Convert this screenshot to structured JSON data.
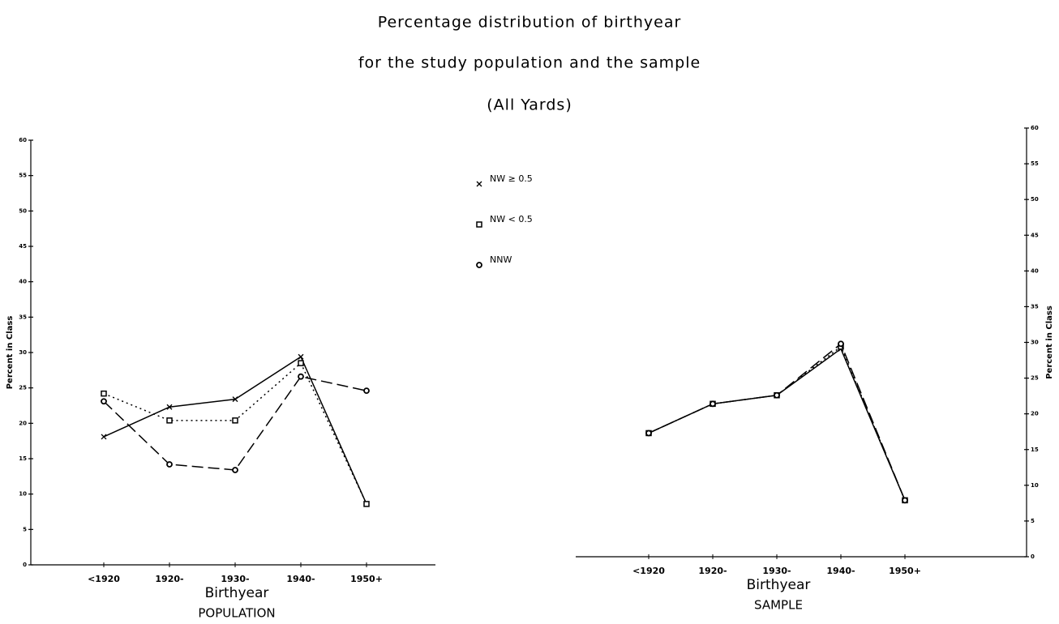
{
  "title": [
    "Percentage distribution of birthyear",
    "for the study population and the sample",
    "(All Yards)"
  ],
  "chart_data": [
    {
      "type": "line",
      "caption": "POPULATION",
      "xlabel": "Birthyear",
      "ylabel": "Percent in Class",
      "categories": [
        "<1920",
        "1920-",
        "1930-",
        "1940-",
        "1950+"
      ],
      "ylim": [
        0,
        60
      ],
      "yticks": [
        0,
        5,
        10,
        15,
        20,
        25,
        30,
        35,
        40,
        45,
        50,
        55,
        60
      ],
      "y_axis_side": "left",
      "series": [
        {
          "name": "NW ≥ 0.5",
          "color": "#000",
          "dash": "solid",
          "marker": "x",
          "values": [
            18.1,
            22.3,
            23.4,
            29.4,
            8.6
          ]
        },
        {
          "name": "NW < 0.5",
          "color": "#000",
          "dash": "dotted",
          "marker": "square",
          "values": [
            24.2,
            20.4,
            20.4,
            28.5,
            8.6
          ]
        },
        {
          "name": "NNW",
          "color": "#000",
          "dash": "dashed",
          "marker": "circle",
          "values": [
            23.1,
            14.2,
            13.4,
            26.6,
            24.6
          ]
        }
      ]
    },
    {
      "type": "line",
      "caption": "SAMPLE",
      "xlabel": "Birthyear",
      "ylabel": "Percent in Class",
      "categories": [
        "<1920",
        "1920-",
        "1930-",
        "1940-",
        "1950+"
      ],
      "ylim": [
        0,
        60
      ],
      "yticks": [
        0,
        5,
        10,
        15,
        20,
        25,
        30,
        35,
        40,
        45,
        50,
        55,
        60
      ],
      "y_axis_side": "right",
      "series": [
        {
          "color": "#000",
          "dash": "solid",
          "marker": "x",
          "values": [
            17.3,
            21.4,
            22.6,
            29.1,
            7.9
          ]
        },
        {
          "color": "#000",
          "dash": "dotted",
          "marker": "square",
          "values": [
            17.3,
            21.4,
            22.6,
            29.4,
            7.9
          ]
        },
        {
          "color": "#000",
          "dash": "dashed",
          "marker": "circle",
          "values": [
            17.3,
            21.4,
            22.6,
            29.8,
            7.9
          ]
        }
      ]
    }
  ]
}
